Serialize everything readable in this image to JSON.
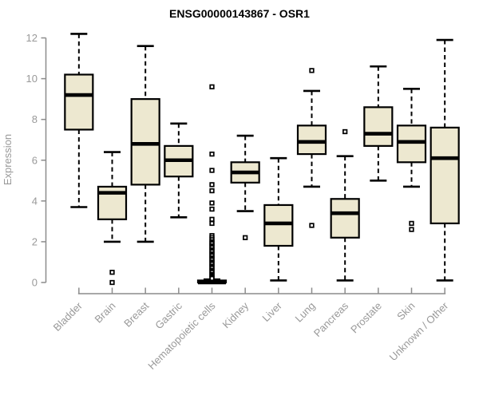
{
  "colors": {
    "background": "#ffffff",
    "title": "#000000",
    "axis_line": "#8c8c8c",
    "tick_label": "#999999",
    "box_fill": "#ede8d0",
    "box_stroke": "#000000",
    "median": "#000000",
    "whisker": "#000000",
    "outlier_fill": "#ffffff",
    "outlier_stroke": "#000000"
  },
  "chart_data": {
    "type": "boxplot",
    "title": "ENSG00000143867 - OSR1",
    "xlabel": "",
    "ylabel": "Expression",
    "ylim": [
      0,
      12
    ],
    "yticks": [
      0,
      2,
      4,
      6,
      8,
      10,
      12
    ],
    "grid": false,
    "legend": "none",
    "x_tick_rotation_deg": 45,
    "categories": [
      "Bladder",
      "Brain",
      "Breast",
      "Gastric",
      "Hematopoietic cells",
      "Kidney",
      "Liver",
      "Lung",
      "Pancreas",
      "Prostate",
      "Skin",
      "Unknown / Other"
    ],
    "series": [
      {
        "name": "Bladder",
        "low": 3.7,
        "q1": 7.5,
        "median": 9.2,
        "q3": 10.2,
        "high": 12.2,
        "outliers": []
      },
      {
        "name": "Brain",
        "low": 2.0,
        "q1": 3.1,
        "median": 4.4,
        "q3": 4.7,
        "high": 6.4,
        "outliers": [
          0.5,
          0.0
        ]
      },
      {
        "name": "Breast",
        "low": 2.0,
        "q1": 4.8,
        "median": 6.8,
        "q3": 9.0,
        "high": 11.6,
        "outliers": []
      },
      {
        "name": "Gastric",
        "low": 3.2,
        "q1": 5.2,
        "median": 6.0,
        "q3": 6.7,
        "high": 7.8,
        "outliers": []
      },
      {
        "name": "Hematopoietic cells",
        "low": 0.0,
        "q1": 0.0,
        "median": 0.0,
        "q3": 0.1,
        "high": 0.15,
        "outliers": [
          9.6,
          6.3,
          5.5,
          4.8,
          4.5,
          3.9,
          3.6,
          3.1,
          2.9,
          2.3,
          2.2,
          2.1,
          2.0,
          1.95,
          1.9,
          1.8,
          1.75,
          1.7,
          1.6,
          1.55,
          1.5,
          1.4,
          1.35,
          1.3,
          1.2,
          1.15,
          1.1,
          1.0,
          0.95,
          0.9,
          0.8,
          0.75,
          0.7,
          0.6,
          0.55,
          0.5,
          0.4,
          0.35,
          0.3,
          0.25,
          0.2
        ]
      },
      {
        "name": "Kidney",
        "low": 3.5,
        "q1": 4.9,
        "median": 5.4,
        "q3": 5.9,
        "high": 7.2,
        "outliers": [
          2.2
        ]
      },
      {
        "name": "Liver",
        "low": 0.1,
        "q1": 1.8,
        "median": 2.9,
        "q3": 3.8,
        "high": 6.1,
        "outliers": []
      },
      {
        "name": "Lung",
        "low": 4.7,
        "q1": 6.3,
        "median": 6.9,
        "q3": 7.7,
        "high": 9.4,
        "outliers": [
          10.4,
          2.8
        ]
      },
      {
        "name": "Pancreas",
        "low": 0.1,
        "q1": 2.2,
        "median": 3.4,
        "q3": 4.1,
        "high": 6.2,
        "outliers": [
          7.4
        ]
      },
      {
        "name": "Prostate",
        "low": 5.0,
        "q1": 6.7,
        "median": 7.3,
        "q3": 8.6,
        "high": 10.6,
        "outliers": []
      },
      {
        "name": "Skin",
        "low": 4.7,
        "q1": 5.9,
        "median": 6.9,
        "q3": 7.7,
        "high": 9.5,
        "outliers": [
          2.9,
          2.6
        ]
      },
      {
        "name": "Unknown / Other",
        "low": 0.1,
        "q1": 2.9,
        "median": 6.1,
        "q3": 7.6,
        "high": 11.9,
        "outliers": []
      }
    ]
  }
}
